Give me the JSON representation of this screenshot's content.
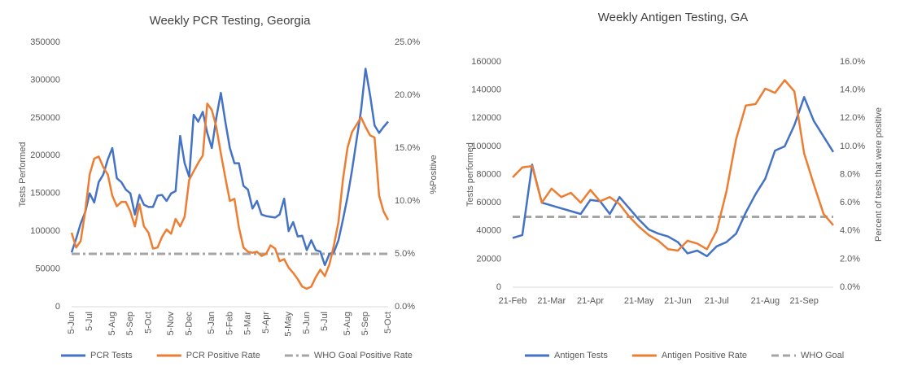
{
  "chart_data": [
    {
      "type": "line",
      "title": "Weekly PCR Testing, Georgia",
      "y_label": "Tests Performed",
      "y2_label": "%Positive",
      "x_tick_rotation": -90,
      "categories": [
        "5-Jun",
        null,
        null,
        null,
        "5-Jul",
        null,
        null,
        null,
        null,
        "5-Aug",
        null,
        null,
        null,
        "5-Sep",
        null,
        null,
        null,
        "5-Oct",
        null,
        null,
        null,
        null,
        "5-Nov",
        null,
        null,
        null,
        "5-Dec",
        null,
        null,
        null,
        null,
        "5-Jan",
        null,
        null,
        null,
        "5-Feb",
        null,
        null,
        null,
        "5-Mar",
        null,
        null,
        null,
        "5-Apr",
        null,
        null,
        null,
        null,
        "5-May",
        null,
        null,
        null,
        "5-Jun",
        null,
        null,
        null,
        "5-Jul",
        null,
        null,
        null,
        null,
        "5-Aug",
        null,
        null,
        null,
        "5-Sep",
        null,
        null,
        null,
        null,
        "5-Oct"
      ],
      "series": [
        {
          "name": "PCR Tests",
          "color": "#4472c4",
          "axis": "y",
          "values": [
            72000,
            90000,
            110000,
            125000,
            150000,
            138000,
            165000,
            175000,
            195000,
            210000,
            170000,
            165000,
            155000,
            150000,
            122000,
            148000,
            135000,
            132000,
            132000,
            147000,
            148000,
            140000,
            150000,
            153000,
            226000,
            190000,
            172000,
            254000,
            245000,
            258000,
            230000,
            210000,
            250000,
            283000,
            245000,
            210000,
            190000,
            190000,
            160000,
            155000,
            130000,
            140000,
            122000,
            120000,
            119000,
            118000,
            122000,
            143000,
            100000,
            112000,
            93000,
            94000,
            75000,
            88000,
            75000,
            73000,
            55000,
            70000,
            72000,
            88000,
            115000,
            145000,
            180000,
            220000,
            260000,
            315000,
            280000,
            240000,
            230000,
            238000,
            245000
          ]
        },
        {
          "name": "PCR Positive Rate",
          "color": "#ed7d31",
          "axis": "y2",
          "values": [
            7.0,
            5.6,
            6.2,
            9.0,
            12.5,
            14.0,
            14.2,
            13.2,
            12.5,
            10.5,
            9.5,
            9.9,
            9.9,
            9.0,
            7.6,
            9.7,
            7.6,
            7.0,
            5.5,
            5.6,
            6.6,
            7.3,
            6.9,
            8.3,
            7.6,
            8.5,
            12.0,
            12.8,
            13.6,
            14.3,
            19.2,
            18.6,
            17.0,
            14.5,
            12.2,
            10.0,
            10.2,
            7.5,
            5.6,
            5.2,
            5.1,
            5.2,
            4.8,
            5.0,
            5.8,
            5.5,
            4.3,
            4.5,
            3.7,
            3.2,
            2.6,
            1.9,
            1.7,
            1.9,
            2.8,
            3.5,
            2.9,
            4.0,
            5.8,
            8.0,
            12.0,
            15.0,
            16.5,
            17.2,
            17.9,
            17.0,
            16.2,
            16.0,
            10.5,
            9.0,
            8.2
          ]
        }
      ],
      "reference_lines": [
        {
          "name": "WHO Goal Positive Rate",
          "value": 5,
          "axis": "y2",
          "color": "#a5a5a5",
          "dash": "dash-dot"
        }
      ],
      "ylim": [
        0,
        350000
      ],
      "yticks": [
        0,
        50000,
        100000,
        150000,
        200000,
        250000,
        300000,
        350000
      ],
      "y2lim": [
        0,
        25
      ],
      "y2ticks": [
        {
          "value": 0,
          "label": "0.0%"
        },
        {
          "value": 5,
          "label": "5.0%"
        },
        {
          "value": 10,
          "label": "10.0%"
        },
        {
          "value": 15,
          "label": "15.0%"
        },
        {
          "value": 20,
          "label": "20.0%"
        },
        {
          "value": 25,
          "label": "25.0%"
        }
      ],
      "grid": false,
      "legend": "bottom"
    },
    {
      "type": "line",
      "title": "Weekly Antigen Testing, GA",
      "y_label": "Tests performed",
      "y2_label": "Percent of tests that were positive",
      "x_tick_rotation": 0,
      "categories": [
        "21-Feb",
        null,
        null,
        null,
        "21-Mar",
        null,
        null,
        null,
        "21-Apr",
        null,
        null,
        null,
        null,
        "21-May",
        null,
        null,
        null,
        "21-Jun",
        null,
        null,
        null,
        "21-Jul",
        null,
        null,
        null,
        null,
        "21-Aug",
        null,
        null,
        null,
        "21-Sep",
        null,
        null,
        null
      ],
      "series": [
        {
          "name": "Antigen Tests",
          "color": "#4472c4",
          "axis": "y",
          "values": [
            35000,
            37000,
            87000,
            60000,
            58000,
            56000,
            54000,
            52000,
            62000,
            61000,
            52000,
            64000,
            56000,
            48000,
            41000,
            38000,
            36000,
            32000,
            24000,
            26000,
            22000,
            29000,
            32000,
            38000,
            53000,
            66000,
            77000,
            97000,
            100000,
            115000,
            135000,
            118000,
            107000,
            96000
          ]
        },
        {
          "name": "Antigen Positive Rate",
          "color": "#ed7d31",
          "axis": "y2",
          "values": [
            7.8,
            8.5,
            8.6,
            6.0,
            7.0,
            6.4,
            6.7,
            6.0,
            6.9,
            6.1,
            6.4,
            5.9,
            5.0,
            4.3,
            3.7,
            3.3,
            2.7,
            2.6,
            3.3,
            3.1,
            2.7,
            4.0,
            6.8,
            10.5,
            12.9,
            13.0,
            14.1,
            13.8,
            14.7,
            13.9,
            9.5,
            7.3,
            5.2,
            4.4
          ]
        }
      ],
      "reference_lines": [
        {
          "name": "WHO Goal",
          "value": 5,
          "axis": "y2",
          "color": "#a5a5a5",
          "dash": "dashed"
        }
      ],
      "ylim": [
        0,
        160000
      ],
      "yticks": [
        0,
        20000,
        40000,
        60000,
        80000,
        100000,
        120000,
        140000,
        160000
      ],
      "y2lim": [
        0,
        16
      ],
      "y2ticks": [
        {
          "value": 0,
          "label": "0.0%"
        },
        {
          "value": 2,
          "label": "2.0%"
        },
        {
          "value": 4,
          "label": "4.0%"
        },
        {
          "value": 6,
          "label": "6.0%"
        },
        {
          "value": 8,
          "label": "8.0%"
        },
        {
          "value": 10,
          "label": "10.0%"
        },
        {
          "value": 12,
          "label": "12.0%"
        },
        {
          "value": 14,
          "label": "14.0%"
        },
        {
          "value": 16,
          "label": "16.0%"
        }
      ],
      "grid": false,
      "legend": "bottom"
    }
  ]
}
